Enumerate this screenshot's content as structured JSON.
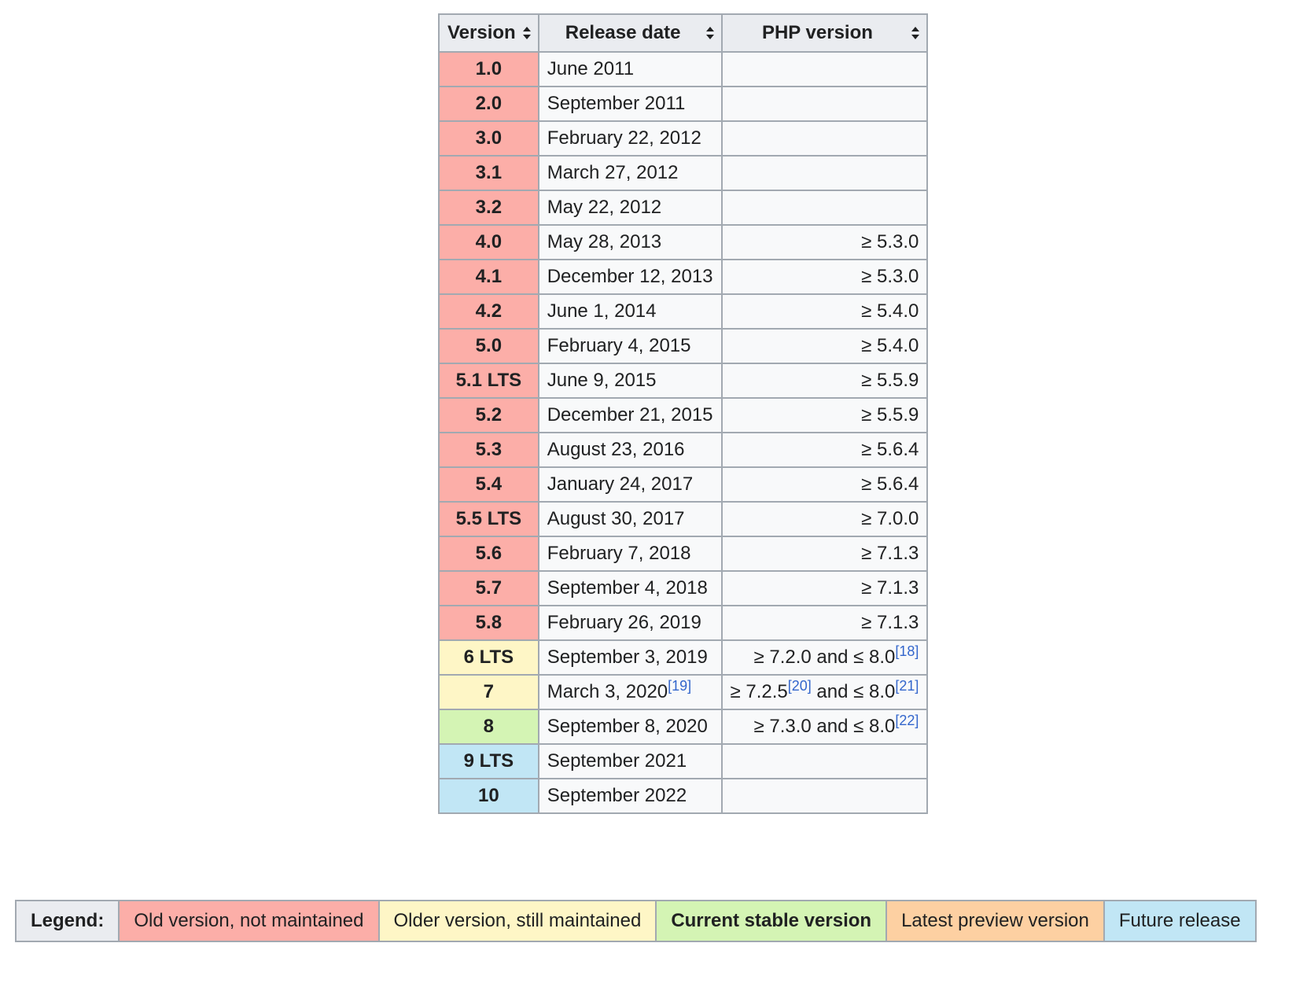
{
  "table": {
    "headers": {
      "version": "Version",
      "release_date": "Release date",
      "php_version": "PHP version"
    },
    "rows": [
      {
        "version": "1.0",
        "date": "June 2011",
        "php": "",
        "status": "old"
      },
      {
        "version": "2.0",
        "date": "September 2011",
        "php": "",
        "status": "old"
      },
      {
        "version": "3.0",
        "date": "February 22, 2012",
        "php": "",
        "status": "old"
      },
      {
        "version": "3.1",
        "date": "March 27, 2012",
        "php": "",
        "status": "old"
      },
      {
        "version": "3.2",
        "date": "May 22, 2012",
        "php": "",
        "status": "old"
      },
      {
        "version": "4.0",
        "date": "May 28, 2013",
        "php": "≥ 5.3.0",
        "status": "old"
      },
      {
        "version": "4.1",
        "date": "December 12, 2013",
        "php": "≥ 5.3.0",
        "status": "old"
      },
      {
        "version": "4.2",
        "date": "June 1, 2014",
        "php": "≥ 5.4.0",
        "status": "old"
      },
      {
        "version": "5.0",
        "date": "February 4, 2015",
        "php": "≥ 5.4.0",
        "status": "old"
      },
      {
        "version": "5.1 LTS",
        "date": "June 9, 2015",
        "php": "≥ 5.5.9",
        "status": "old"
      },
      {
        "version": "5.2",
        "date": "December 21, 2015",
        "php": "≥ 5.5.9",
        "status": "old"
      },
      {
        "version": "5.3",
        "date": "August 23, 2016",
        "php": "≥ 5.6.4",
        "status": "old"
      },
      {
        "version": "5.4",
        "date": "January 24, 2017",
        "php": "≥ 5.6.4",
        "status": "old"
      },
      {
        "version": "5.5 LTS",
        "date": "August 30, 2017",
        "php": "≥ 7.0.0",
        "status": "old"
      },
      {
        "version": "5.6",
        "date": "February 7, 2018",
        "php": "≥ 7.1.3",
        "status": "old"
      },
      {
        "version": "5.7",
        "date": "September 4, 2018",
        "php": "≥ 7.1.3",
        "status": "old"
      },
      {
        "version": "5.8",
        "date": "February 26, 2019",
        "php": "≥ 7.1.3",
        "status": "old"
      },
      {
        "version": "6 LTS",
        "date": "September 3, 2019",
        "php": "≥ 7.2.0 and ≤ 8.0",
        "php_refs": [
          "18"
        ],
        "status": "older"
      },
      {
        "version": "7",
        "date": "March 3, 2020",
        "date_ref": "19",
        "php_parts": [
          "≥ 7.2.5",
          " and ≤ 8.0"
        ],
        "php_part_refs": [
          "20",
          "21"
        ],
        "status": "older"
      },
      {
        "version": "8",
        "date": "September 8, 2020",
        "php": "≥ 7.3.0 and ≤ 8.0",
        "php_refs": [
          "22"
        ],
        "status": "current"
      },
      {
        "version": "9 LTS",
        "date": "September 2021",
        "php": "",
        "status": "future"
      },
      {
        "version": "10",
        "date": "September 2022",
        "php": "",
        "status": "future"
      }
    ]
  },
  "legend": {
    "title": "Legend:",
    "items": [
      {
        "label": "Old version, not maintained",
        "status": "old"
      },
      {
        "label": "Older version, still maintained",
        "status": "older"
      },
      {
        "label": "Current stable version",
        "status": "current"
      },
      {
        "label": "Latest preview version",
        "status": "preview"
      },
      {
        "label": "Future release",
        "status": "future"
      }
    ]
  },
  "colors": {
    "old": "#fcaea8",
    "older": "#fef6c6",
    "current": "#d4f4b4",
    "preview": "#fdd0a2",
    "future": "#c1e6f5",
    "header_bg": "#eaecf0",
    "cell_bg": "#f8f9fa",
    "border": "#a2a9b1",
    "link": "#3366cc"
  },
  "icons": {
    "sort": "sort-up-down-icon"
  }
}
